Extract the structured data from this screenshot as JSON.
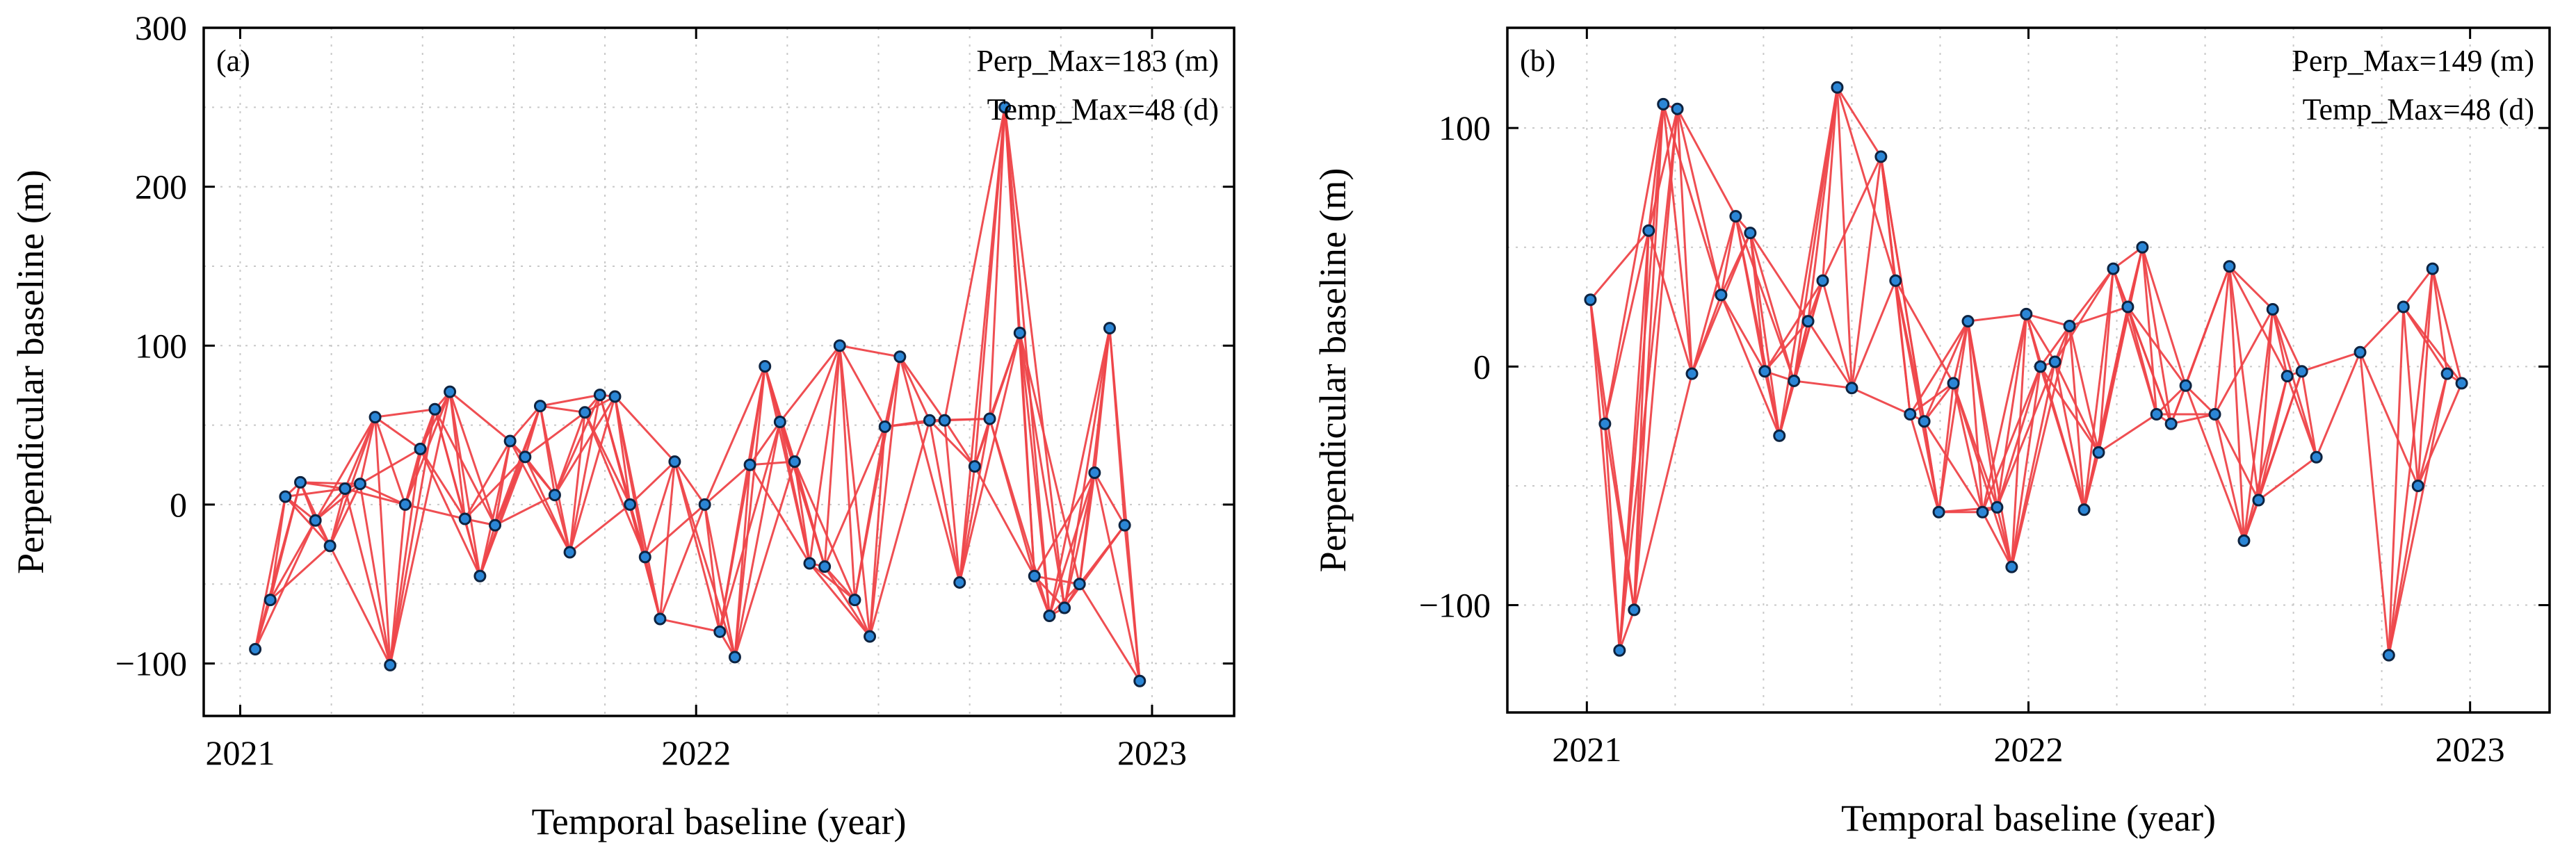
{
  "chart_data": [
    {
      "type": "scatter",
      "panel": "(a)",
      "xlabel": "Temporal baseline (year)",
      "ylabel": "Perpendicular baseline (m)",
      "annotations": [
        "Perp_Max=183 (m)",
        "Temp_Max=48 (d)"
      ],
      "xlim": [
        2020.92,
        2023.18
      ],
      "ylim": [
        -133,
        300
      ],
      "xticks": [
        2021,
        2022,
        2023
      ],
      "xtick_labels": [
        "2021",
        "2022",
        "2023"
      ],
      "yticks": [
        -100,
        0,
        100,
        200,
        300
      ],
      "ytick_labels": [
        "−100",
        "0",
        "100",
        "200",
        "300"
      ],
      "grid": true,
      "point_color": "#2b86d6",
      "link_color": "#ee4449",
      "points": [
        {
          "x": 2021.033,
          "y": -91
        },
        {
          "x": 2021.066,
          "y": -60
        },
        {
          "x": 2021.099,
          "y": 5
        },
        {
          "x": 2021.132,
          "y": 14
        },
        {
          "x": 2021.165,
          "y": -10
        },
        {
          "x": 2021.197,
          "y": -26
        },
        {
          "x": 2021.23,
          "y": 10
        },
        {
          "x": 2021.263,
          "y": 13
        },
        {
          "x": 2021.296,
          "y": 55
        },
        {
          "x": 2021.329,
          "y": -101
        },
        {
          "x": 2021.362,
          "y": 0
        },
        {
          "x": 2021.395,
          "y": 35
        },
        {
          "x": 2021.427,
          "y": 60
        },
        {
          "x": 2021.46,
          "y": 71
        },
        {
          "x": 2021.493,
          "y": -9
        },
        {
          "x": 2021.526,
          "y": -45
        },
        {
          "x": 2021.559,
          "y": -13
        },
        {
          "x": 2021.592,
          "y": 40
        },
        {
          "x": 2021.625,
          "y": 30
        },
        {
          "x": 2021.658,
          "y": 62
        },
        {
          "x": 2021.69,
          "y": 6
        },
        {
          "x": 2021.723,
          "y": -30
        },
        {
          "x": 2021.756,
          "y": 58
        },
        {
          "x": 2021.789,
          "y": 69
        },
        {
          "x": 2021.822,
          "y": 68
        },
        {
          "x": 2021.855,
          "y": 0
        },
        {
          "x": 2021.888,
          "y": -33
        },
        {
          "x": 2021.921,
          "y": -72
        },
        {
          "x": 2021.953,
          "y": 27
        },
        {
          "x": 2022.019,
          "y": 0
        },
        {
          "x": 2022.052,
          "y": -80
        },
        {
          "x": 2022.085,
          "y": -96
        },
        {
          "x": 2022.118,
          "y": 25
        },
        {
          "x": 2022.151,
          "y": 87
        },
        {
          "x": 2022.184,
          "y": 52
        },
        {
          "x": 2022.216,
          "y": 27
        },
        {
          "x": 2022.249,
          "y": -37
        },
        {
          "x": 2022.282,
          "y": -39
        },
        {
          "x": 2022.315,
          "y": 100
        },
        {
          "x": 2022.348,
          "y": -60
        },
        {
          "x": 2022.381,
          "y": -83
        },
        {
          "x": 2022.414,
          "y": 49
        },
        {
          "x": 2022.447,
          "y": 93
        },
        {
          "x": 2022.512,
          "y": 53
        },
        {
          "x": 2022.545,
          "y": 53
        },
        {
          "x": 2022.578,
          "y": -49
        },
        {
          "x": 2022.611,
          "y": 24
        },
        {
          "x": 2022.644,
          "y": 54
        },
        {
          "x": 2022.677,
          "y": 250
        },
        {
          "x": 2022.71,
          "y": 108
        },
        {
          "x": 2022.742,
          "y": -45
        },
        {
          "x": 2022.775,
          "y": -70
        },
        {
          "x": 2022.808,
          "y": -65
        },
        {
          "x": 2022.841,
          "y": -50
        },
        {
          "x": 2022.874,
          "y": 20
        },
        {
          "x": 2022.907,
          "y": 111
        },
        {
          "x": 2022.94,
          "y": -13
        },
        {
          "x": 2022.973,
          "y": -111
        }
      ]
    },
    {
      "type": "scatter",
      "panel": "(b)",
      "xlabel": "Temporal baseline (year)",
      "ylabel": "Perpendicular baseline (m)",
      "annotations": [
        "Perp_Max=149 (m)",
        "Temp_Max=48 (d)"
      ],
      "xlim": [
        2020.82,
        2023.18
      ],
      "ylim": [
        -145,
        142
      ],
      "xticks": [
        2021,
        2022,
        2023
      ],
      "xtick_labels": [
        "2021",
        "2022",
        "2023"
      ],
      "yticks": [
        -100,
        0,
        100
      ],
      "ytick_labels": [
        "−100",
        "0",
        "100"
      ],
      "grid": true,
      "point_color": "#2b86d6",
      "link_color": "#ee4449",
      "points": [
        {
          "x": 2021.008,
          "y": 28
        },
        {
          "x": 2021.041,
          "y": -24
        },
        {
          "x": 2021.074,
          "y": -119
        },
        {
          "x": 2021.107,
          "y": -102
        },
        {
          "x": 2021.14,
          "y": 57
        },
        {
          "x": 2021.173,
          "y": 110
        },
        {
          "x": 2021.205,
          "y": 108
        },
        {
          "x": 2021.238,
          "y": -3
        },
        {
          "x": 2021.304,
          "y": 30
        },
        {
          "x": 2021.337,
          "y": 63
        },
        {
          "x": 2021.37,
          "y": 56
        },
        {
          "x": 2021.403,
          "y": -2
        },
        {
          "x": 2021.436,
          "y": -29
        },
        {
          "x": 2021.469,
          "y": -6
        },
        {
          "x": 2021.501,
          "y": 19
        },
        {
          "x": 2021.534,
          "y": 36
        },
        {
          "x": 2021.567,
          "y": 117
        },
        {
          "x": 2021.6,
          "y": -9
        },
        {
          "x": 2021.666,
          "y": 88
        },
        {
          "x": 2021.699,
          "y": 36
        },
        {
          "x": 2021.732,
          "y": -20
        },
        {
          "x": 2021.764,
          "y": -23
        },
        {
          "x": 2021.797,
          "y": -61
        },
        {
          "x": 2021.83,
          "y": -7
        },
        {
          "x": 2021.863,
          "y": 19
        },
        {
          "x": 2021.896,
          "y": -61
        },
        {
          "x": 2021.929,
          "y": -59
        },
        {
          "x": 2021.962,
          "y": -84
        },
        {
          "x": 2021.995,
          "y": 22
        },
        {
          "x": 2022.027,
          "y": 0
        },
        {
          "x": 2022.06,
          "y": 2
        },
        {
          "x": 2022.093,
          "y": 17
        },
        {
          "x": 2022.126,
          "y": -60
        },
        {
          "x": 2022.159,
          "y": -36
        },
        {
          "x": 2022.192,
          "y": 41
        },
        {
          "x": 2022.225,
          "y": 25
        },
        {
          "x": 2022.258,
          "y": 50
        },
        {
          "x": 2022.29,
          "y": -20
        },
        {
          "x": 2022.323,
          "y": -24
        },
        {
          "x": 2022.356,
          "y": -8
        },
        {
          "x": 2022.422,
          "y": -20
        },
        {
          "x": 2022.455,
          "y": 42
        },
        {
          "x": 2022.488,
          "y": -73
        },
        {
          "x": 2022.521,
          "y": -56
        },
        {
          "x": 2022.553,
          "y": 24
        },
        {
          "x": 2022.586,
          "y": -4
        },
        {
          "x": 2022.619,
          "y": -2
        },
        {
          "x": 2022.652,
          "y": -38
        },
        {
          "x": 2022.751,
          "y": 6
        },
        {
          "x": 2022.816,
          "y": -121
        },
        {
          "x": 2022.849,
          "y": 25
        },
        {
          "x": 2022.882,
          "y": -50
        },
        {
          "x": 2022.915,
          "y": 41
        },
        {
          "x": 2022.948,
          "y": -3
        },
        {
          "x": 2022.981,
          "y": -7
        }
      ]
    }
  ]
}
